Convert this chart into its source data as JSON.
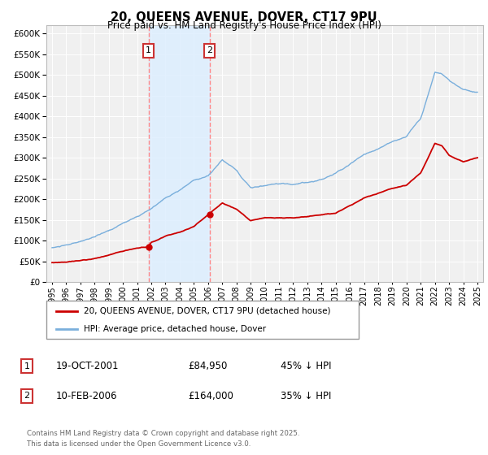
{
  "title": "20, QUEENS AVENUE, DOVER, CT17 9PU",
  "subtitle": "Price paid vs. HM Land Registry's House Price Index (HPI)",
  "legend_red": "20, QUEENS AVENUE, DOVER, CT17 9PU (detached house)",
  "legend_blue": "HPI: Average price, detached house, Dover",
  "annotation1_label": "1",
  "annotation1_date": "19-OCT-2001",
  "annotation1_price": "£84,950",
  "annotation1_hpi": "45% ↓ HPI",
  "annotation2_label": "2",
  "annotation2_date": "10-FEB-2006",
  "annotation2_price": "£164,000",
  "annotation2_hpi": "35% ↓ HPI",
  "footnote1": "Contains HM Land Registry data © Crown copyright and database right 2025.",
  "footnote2": "This data is licensed under the Open Government Licence v3.0.",
  "ylim": [
    0,
    620000
  ],
  "yticks": [
    0,
    50000,
    100000,
    150000,
    200000,
    250000,
    300000,
    350000,
    400000,
    450000,
    500000,
    550000,
    600000
  ],
  "year_start": 1995,
  "year_end": 2025,
  "sale1_year": 2001.8,
  "sale1_value": 84950,
  "sale2_year": 2006.1,
  "sale2_value": 164000,
  "background_color": "#ffffff",
  "plot_bg_color": "#f0f0f0",
  "grid_color": "#ffffff",
  "red_color": "#cc0000",
  "blue_color": "#7aafdc",
  "vline_color": "#ff8888",
  "shade_color": "#ddeeff",
  "box_edge_color": "#cc3333"
}
